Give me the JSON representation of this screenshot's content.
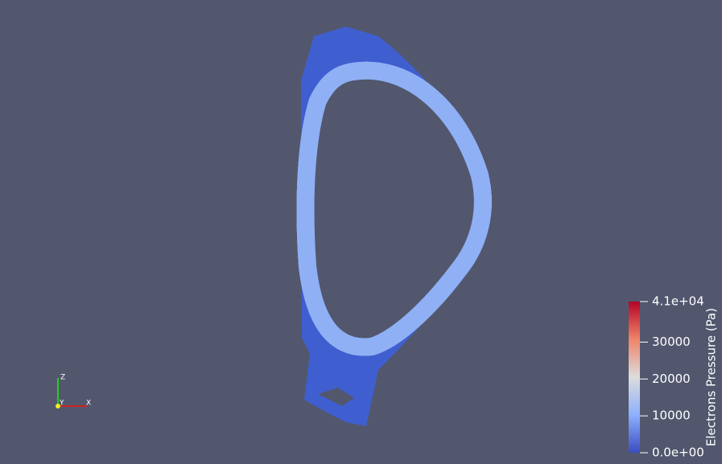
{
  "colorbar": {
    "title": "Electrons Pressure (Pa)",
    "range": [
      0,
      41000
    ],
    "ticks": [
      {
        "value": 41000,
        "label": "4.1e+04"
      },
      30000,
      20000,
      10000,
      {
        "value": 0,
        "label": "0.0e+00"
      }
    ]
  },
  "axes": {
    "z": "Z",
    "y": "Y",
    "x": "X"
  }
}
